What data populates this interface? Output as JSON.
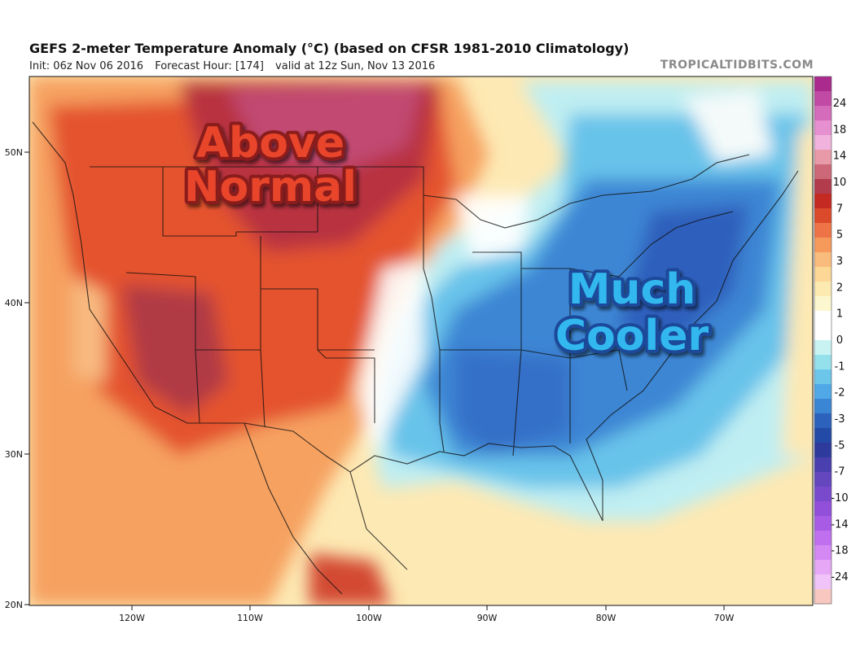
{
  "header": {
    "title": "GEFS 2-meter Temperature Anomaly (°C) (based on CFSR 1981-2010 Climatology)",
    "init": "Init: 06z Nov 06 2016",
    "forecast_hour": "Forecast Hour: [174]",
    "valid": "valid at 12z Sun, Nov 13 2016",
    "brand": "TROPICALTIDBITS.COM"
  },
  "map": {
    "lat_labels": [
      "50N",
      "40N",
      "30N",
      "20N"
    ],
    "lon_labels": [
      "120W",
      "110W",
      "100W",
      "90W",
      "80W",
      "70W"
    ],
    "annotations": {
      "warm_line1": "Above",
      "warm_line2": "Normal",
      "cool_line1": "Much",
      "cool_line2": "Cooler"
    },
    "annotation_colors": {
      "warm": "#e8452a",
      "cool": "#33b8ee"
    }
  },
  "colorbar": {
    "labels": [
      "24",
      "18",
      "14",
      "10",
      "7",
      "5",
      "3",
      "2",
      "1",
      "0",
      "-1",
      "-2",
      "-3",
      "-5",
      "-7",
      "-10",
      "-14",
      "-18",
      "-24"
    ],
    "colors": [
      "#aa2a8e",
      "#c04aa4",
      "#d46cbb",
      "#e690cf",
      "#f2b2de",
      "#e89aa8",
      "#cc6877",
      "#b23c4c",
      "#c42a22",
      "#dc4a2c",
      "#ee7447",
      "#f69a5c",
      "#fabc7d",
      "#fcd796",
      "#fdeab1",
      "#fdf7cf",
      "#ffffff",
      "#ffffff",
      "#c9f3f3",
      "#94e1ec",
      "#6cc6ea",
      "#50a8e6",
      "#3a85d4",
      "#2c62bb",
      "#234aa6",
      "#2e3b9c",
      "#4a3fae",
      "#6446be",
      "#7a4acd",
      "#914fda",
      "#a85be5",
      "#c06fee",
      "#d488f3",
      "#e6a7f7",
      "#f1c4f9",
      "#f8c8c0"
    ]
  }
}
